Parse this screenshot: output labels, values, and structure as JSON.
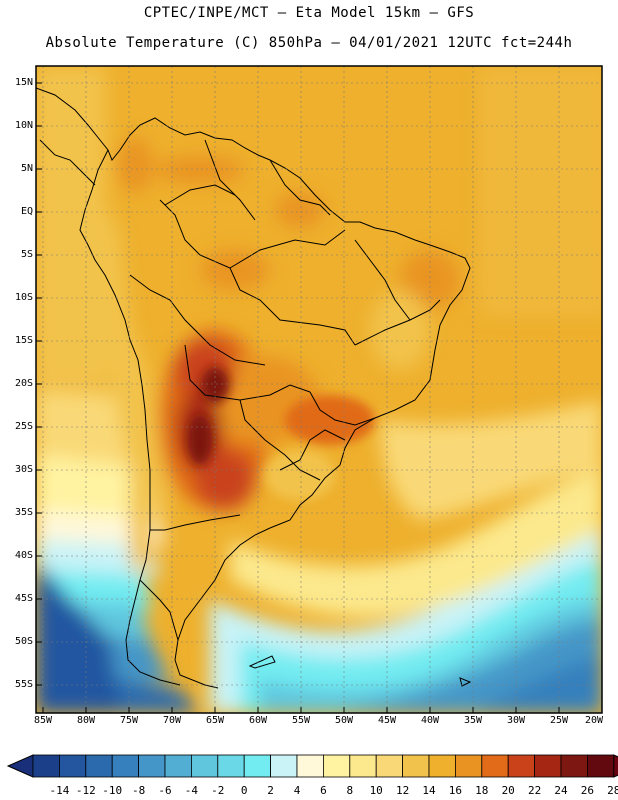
{
  "title_line1": "CPTEC/INPE/MCT –  Eta Model 15km – GFS",
  "title_line2": "Absolute Temperature (C) 850hPa – 04/01/2021 12UTC fct=244h",
  "lat_labels": [
    "15N",
    "10N",
    "5N",
    "EQ",
    "5S",
    "10S",
    "15S",
    "20S",
    "25S",
    "30S",
    "35S",
    "40S",
    "45S",
    "50S",
    "55S"
  ],
  "lon_labels": [
    "85W",
    "80W",
    "75W",
    "70W",
    "65W",
    "60W",
    "55W",
    "50W",
    "45W",
    "40W",
    "35W",
    "30W",
    "25W",
    "20W"
  ],
  "colorbar": {
    "ticks": [
      "-14",
      "-12",
      "-10",
      "-8",
      "-6",
      "-4",
      "-2",
      "0",
      "2",
      "4",
      "6",
      "8",
      "10",
      "12",
      "14",
      "16",
      "18",
      "20",
      "22",
      "24",
      "26",
      "28"
    ],
    "colors": [
      "#1c3f8a",
      "#2456a0",
      "#2c6aae",
      "#3680bd",
      "#4596c8",
      "#52aed3",
      "#5fc6de",
      "#6ad8e6",
      "#72ecf1",
      "#c9f3f7",
      "#fff8d9",
      "#fff3a1",
      "#fce98d",
      "#f9d977",
      "#f2c34c",
      "#eeb02d",
      "#e99422",
      "#e16b18",
      "#c9421a",
      "#a42613",
      "#7c1811",
      "#62080f"
    ],
    "under_color": "#1a2f7a",
    "over_color": "#6a0310"
  }
}
